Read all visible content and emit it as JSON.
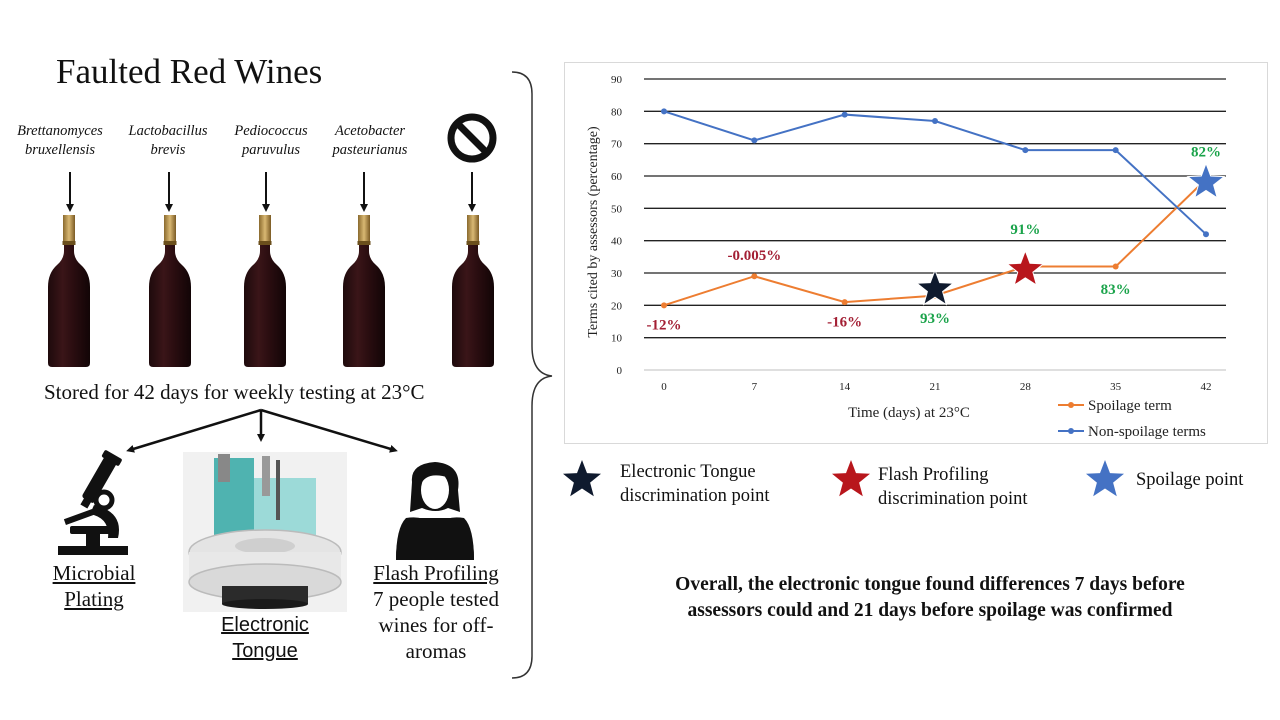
{
  "left": {
    "title": "Faulted Red Wines",
    "microbes": [
      {
        "line1": "Brettanomyces",
        "line2": "bruxellensis"
      },
      {
        "line1": "Lactobacillus",
        "line2": "brevis"
      },
      {
        "line1": "Pediococcus",
        "line2": "paruvulus"
      },
      {
        "line1": "Acetobacter",
        "line2": "pasteurianus"
      }
    ],
    "control_icon": "no-symbol-icon",
    "stored_text": "Stored for 42 days for weekly testing at 23°C",
    "methods": {
      "microbial_line1": "Microbial",
      "microbial_line2": "Plating",
      "tongue_line1": "Electronic",
      "tongue_line2": "Tongue",
      "flash_title": "Flash Profiling",
      "flash_line1": "7 people tested",
      "flash_line2": "wines for off-",
      "flash_line3": "aromas"
    }
  },
  "chart_data": {
    "type": "line",
    "xlabel": "Time (days) at 23°C",
    "ylabel": "Terms cited by assessors (percentage)",
    "x": [
      0,
      7,
      14,
      21,
      28,
      35,
      42
    ],
    "ylim": [
      0,
      90
    ],
    "yticks": [
      0,
      10,
      20,
      30,
      40,
      50,
      60,
      70,
      80,
      90
    ],
    "grid": true,
    "legend_position": "bottom-right",
    "series": [
      {
        "name": "Spoilage term",
        "color": "#ed7d31",
        "values": [
          20,
          29,
          21,
          23,
          32,
          32,
          59
        ]
      },
      {
        "name": "Non-spoilage terms",
        "color": "#4472c4",
        "values": [
          80,
          71,
          79,
          77,
          68,
          68,
          42
        ]
      }
    ],
    "annotations": [
      {
        "text": "-12%",
        "color": "#a31f34",
        "x": 0,
        "y": 12.5
      },
      {
        "text": "-0.005%",
        "color": "#a31f34",
        "x": 7,
        "y": 34
      },
      {
        "text": "-16%",
        "color": "#a31f34",
        "x": 14,
        "y": 13.5
      },
      {
        "text": "93%",
        "color": "#1aa34a",
        "x": 21,
        "y": 14.5
      },
      {
        "text": "91%",
        "color": "#1aa34a",
        "x": 28,
        "y": 42
      },
      {
        "text": "83%",
        "color": "#1aa34a",
        "x": 35,
        "y": 23.5
      },
      {
        "text": "82%",
        "color": "#1aa34a",
        "x": 42,
        "y": 66
      }
    ],
    "stars": [
      {
        "kind": "electronic-tongue",
        "color": "#0f1a2e",
        "x": 21,
        "y": 25
      },
      {
        "kind": "flash-profiling",
        "color": "#b8161c",
        "x": 28,
        "y": 31
      },
      {
        "kind": "spoilage",
        "color": "#4472c4",
        "x": 42,
        "y": 58
      }
    ]
  },
  "legend": {
    "tongue_line1": "Electronic Tongue",
    "tongue_line2": "discrimination point",
    "flash_line1": "Flash Profiling",
    "flash_line2": "discrimination point",
    "spoilage": "Spoilage point",
    "tongue_color": "#0f1a2e",
    "flash_color": "#b8161c",
    "spoilage_color": "#4472c4"
  },
  "summary": {
    "line1": "Overall, the electronic tongue found differences 7 days before",
    "line2": "assessors could and 21 days before spoilage was confirmed"
  }
}
